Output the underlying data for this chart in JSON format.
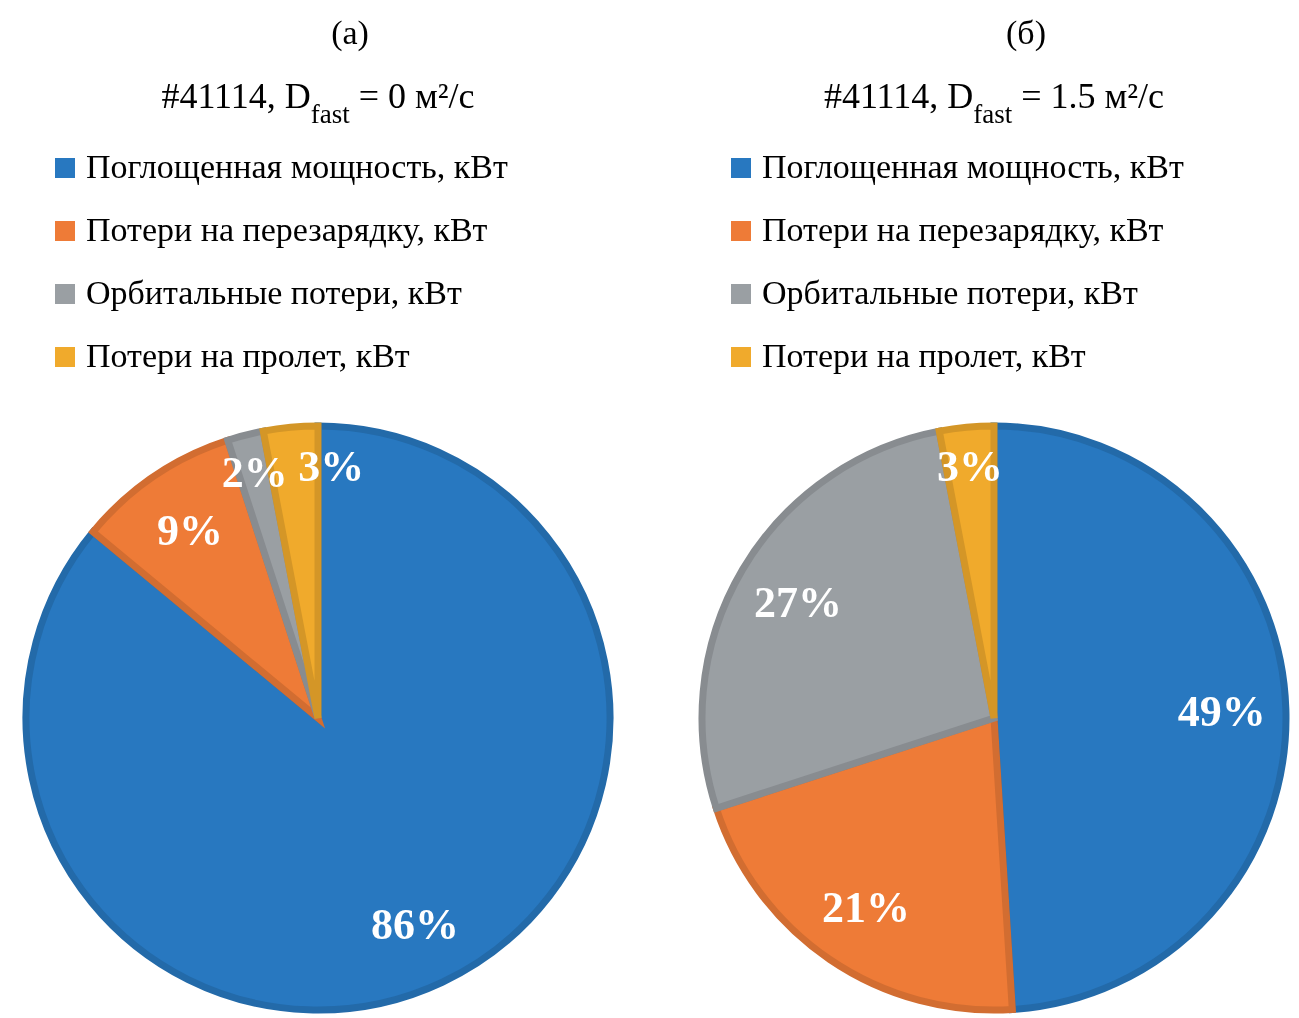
{
  "chart_data": [
    {
      "type": "pie",
      "title": "(а)",
      "subtitle": "#41114, D$_{fast}$ = 0 м²/с",
      "categories": [
        "Поглощенная мощность, кВт",
        "Потери на перезарядку, кВт",
        "Орбитальные потери, кВт",
        "Потери на пролет, кВт"
      ],
      "values": [
        86,
        9,
        2,
        3
      ],
      "value_labels": [
        "86%",
        "9%",
        "2%",
        "3%"
      ],
      "colors": [
        "#2878c0",
        "#ee7b37",
        "#9a9fa3",
        "#f0aa2c"
      ],
      "legend": "top"
    },
    {
      "type": "pie",
      "title": "(б)",
      "subtitle": "#41114, D$_{fast}$ = 1.5 м²/с",
      "categories": [
        "Поглощенная мощность, кВт",
        "Потери на перезарядку, кВт",
        "Орбитальные потери, кВт",
        "Потери на пролет, кВт"
      ],
      "values": [
        49,
        21,
        27,
        3
      ],
      "value_labels": [
        "49%",
        "21%",
        "27%",
        "3%"
      ],
      "colors": [
        "#2878c0",
        "#ee7b37",
        "#9a9fa3",
        "#f0aa2c"
      ],
      "legend": "top"
    }
  ]
}
